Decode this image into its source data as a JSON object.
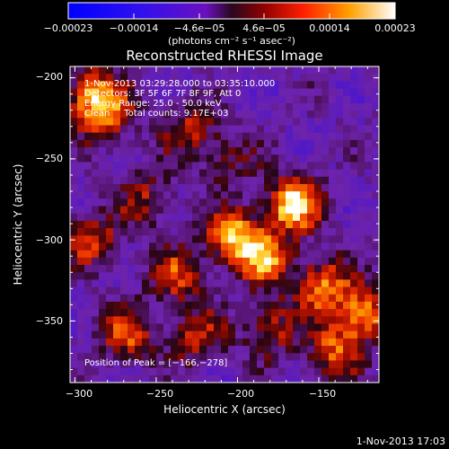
{
  "chart_data": {
    "type": "heatmap",
    "title": "Reconstructed RHESSI Image",
    "xlabel": "Heliocentric X (arcsec)",
    "ylabel": "Heliocentric Y (arcsec)",
    "xlim": [
      -303,
      -113
    ],
    "ylim": [
      -388,
      -193
    ],
    "x_ticks": [
      -300,
      -250,
      -200,
      -150
    ],
    "x_tick_labels": [
      "−300",
      "−250",
      "−200",
      "−150"
    ],
    "y_ticks": [
      -200,
      -250,
      -300,
      -350
    ],
    "y_tick_labels": [
      "−200",
      "−250",
      "−300",
      "−350"
    ],
    "colorbar": {
      "colormap": "hot-diverging (blue → purple → red → yellow → white)",
      "range": [
        -0.00023,
        0.00023
      ],
      "tick_labels": [
        "−0.00023",
        "−0.00014",
        "−4.6e−05",
        "4.6e−05",
        "0.00014",
        "0.00023"
      ],
      "unit_label": "(photons cm⁻² s⁻¹ asec⁻²)"
    },
    "annotations": {
      "time_range": "1-Nov-2013 03:29:28.000 to 03:35:10.000",
      "detectors": "Detectors: 3F 5F 6F 7F 8F 9F, Att 0",
      "energy_range": "Energy Range: 25.0 - 50.0 keV",
      "method": "Clean     Total counts: 9.17E+03",
      "peak": "Position of Peak = [−166,−278]"
    },
    "peak_position": [
      -166,
      -278
    ],
    "bright_sources": [
      {
        "x": -166,
        "y": -278,
        "level": 1.0
      },
      {
        "x": -203,
        "y": -298,
        "level": 0.85
      },
      {
        "x": -183,
        "y": -312,
        "level": 0.7
      },
      {
        "x": -148,
        "y": -328,
        "level": 0.7
      },
      {
        "x": -123,
        "y": -345,
        "level": 0.75
      },
      {
        "x": -140,
        "y": -368,
        "level": 0.6
      },
      {
        "x": -268,
        "y": -358,
        "level": 0.6
      },
      {
        "x": -290,
        "y": -210,
        "level": 0.7
      },
      {
        "x": -280,
        "y": -225,
        "level": 0.55
      },
      {
        "x": -238,
        "y": -322,
        "level": 0.55
      },
      {
        "x": -225,
        "y": -360,
        "level": 0.5
      },
      {
        "x": -230,
        "y": -232,
        "level": 0.45
      },
      {
        "x": -290,
        "y": -300,
        "level": 0.55
      },
      {
        "x": -180,
        "y": -355,
        "level": 0.5
      },
      {
        "x": -255,
        "y": -275,
        "level": 0.45
      },
      {
        "x": -205,
        "y": -250,
        "level": 0.35
      }
    ],
    "grid": false
  },
  "footer": {
    "timestamp": "1-Nov-2013 17:03"
  }
}
